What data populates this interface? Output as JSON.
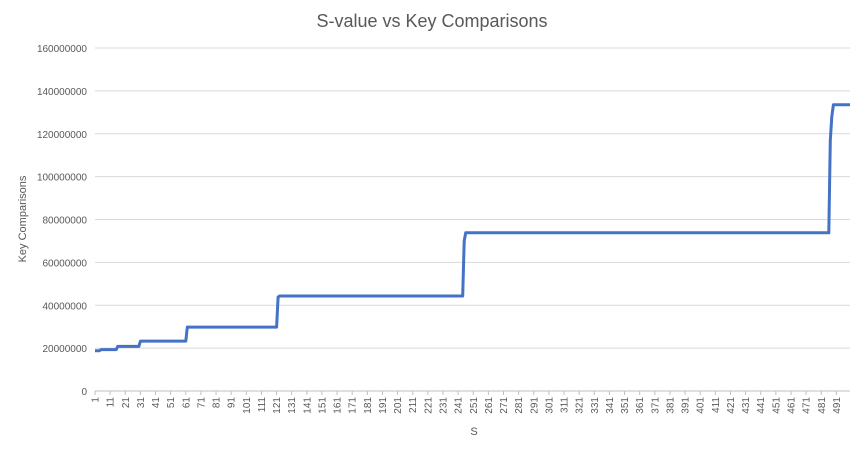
{
  "chart_data": {
    "type": "line",
    "title": "S-value vs Key Comparisons",
    "xlabel": "S",
    "ylabel": "Key Comparisons",
    "xlim": [
      1,
      500
    ],
    "ylim": [
      0,
      160000000
    ],
    "grid": true,
    "legend": "none",
    "line_color": "#4472C4",
    "y_ticks": [
      "0",
      "20000000",
      "40000000",
      "60000000",
      "80000000",
      "100000000",
      "120000000",
      "140000000",
      "160000000"
    ],
    "x_ticks": [
      "1",
      "11",
      "21",
      "31",
      "41",
      "51",
      "61",
      "71",
      "81",
      "91",
      "101",
      "111",
      "121",
      "131",
      "141",
      "151",
      "161",
      "171",
      "181",
      "191",
      "201",
      "211",
      "221",
      "231",
      "241",
      "251",
      "261",
      "271",
      "281",
      "291",
      "301",
      "311",
      "321",
      "331",
      "341",
      "351",
      "361",
      "371",
      "381",
      "391",
      "401",
      "411",
      "421",
      "431",
      "441",
      "451",
      "461",
      "471",
      "481",
      "491"
    ],
    "series": [
      {
        "values": [
          [
            1,
            18800000
          ],
          [
            4,
            18800000
          ],
          [
            5,
            19300000
          ],
          [
            8,
            19300000
          ],
          [
            9,
            19300000
          ],
          [
            15,
            19300000
          ],
          [
            16,
            20800000
          ],
          [
            30,
            20800000
          ],
          [
            31,
            23300000
          ],
          [
            61,
            23300000
          ],
          [
            62,
            29800000
          ],
          [
            121,
            29800000
          ],
          [
            122,
            43800000
          ],
          [
            123,
            44300000
          ],
          [
            244,
            44300000
          ],
          [
            245,
            70000000
          ],
          [
            246,
            73800000
          ],
          [
            486,
            73800000
          ],
          [
            487,
            117000000
          ],
          [
            488,
            128000000
          ],
          [
            489,
            133500000
          ],
          [
            500,
            133500000
          ]
        ]
      }
    ]
  }
}
